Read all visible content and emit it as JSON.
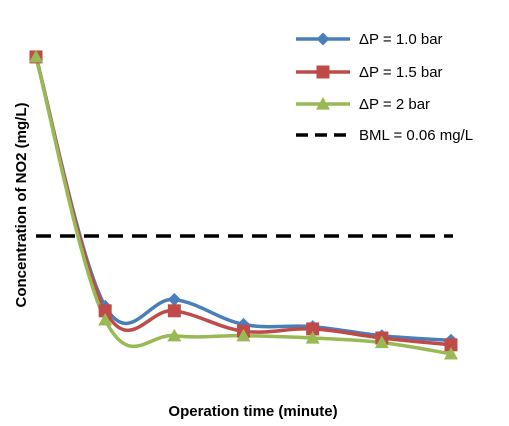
{
  "chart_data": {
    "type": "line",
    "title": "",
    "xlabel": "Operation time (minute)",
    "ylabel": "Concentration of NO2 (mg/L)",
    "x": [
      0,
      1,
      2,
      3,
      4,
      5,
      6
    ],
    "xlim": [
      0,
      6
    ],
    "ylim": [
      0,
      0.15
    ],
    "grid": false,
    "legend_position": "top-right",
    "series": [
      {
        "name": "ΔP = 1.0 bar",
        "color": "#4a7ebb",
        "marker": "diamond",
        "values": [
          0.139,
          0.029,
          0.032,
          0.021,
          0.02,
          0.016,
          0.014
        ]
      },
      {
        "name": "ΔP = 1.5 bar",
        "color": "#be4b48",
        "marker": "square",
        "values": [
          0.139,
          0.027,
          0.027,
          0.018,
          0.019,
          0.015,
          0.012
        ]
      },
      {
        "name": "ΔP = 2 bar",
        "color": "#98b954",
        "marker": "triangle",
        "values": [
          0.139,
          0.023,
          0.016,
          0.016,
          0.015,
          0.013,
          0.008
        ]
      }
    ],
    "reference_lines": [
      {
        "name": "BML = 0.06 mg/L",
        "value": 0.06,
        "color": "#000000",
        "style": "dashed"
      }
    ]
  }
}
